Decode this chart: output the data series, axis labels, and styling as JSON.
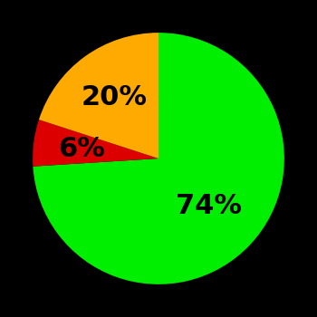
{
  "slices": [
    74,
    6,
    20
  ],
  "colors": [
    "#00ee00",
    "#dd0000",
    "#ffaa00"
  ],
  "labels": [
    "74%",
    "6%",
    "20%"
  ],
  "label_offsets": [
    0.55,
    0.62,
    0.6
  ],
  "background_color": "#000000",
  "text_color": "#000000",
  "startangle": 90,
  "counterclock": false,
  "font_size": 22,
  "font_weight": "bold"
}
